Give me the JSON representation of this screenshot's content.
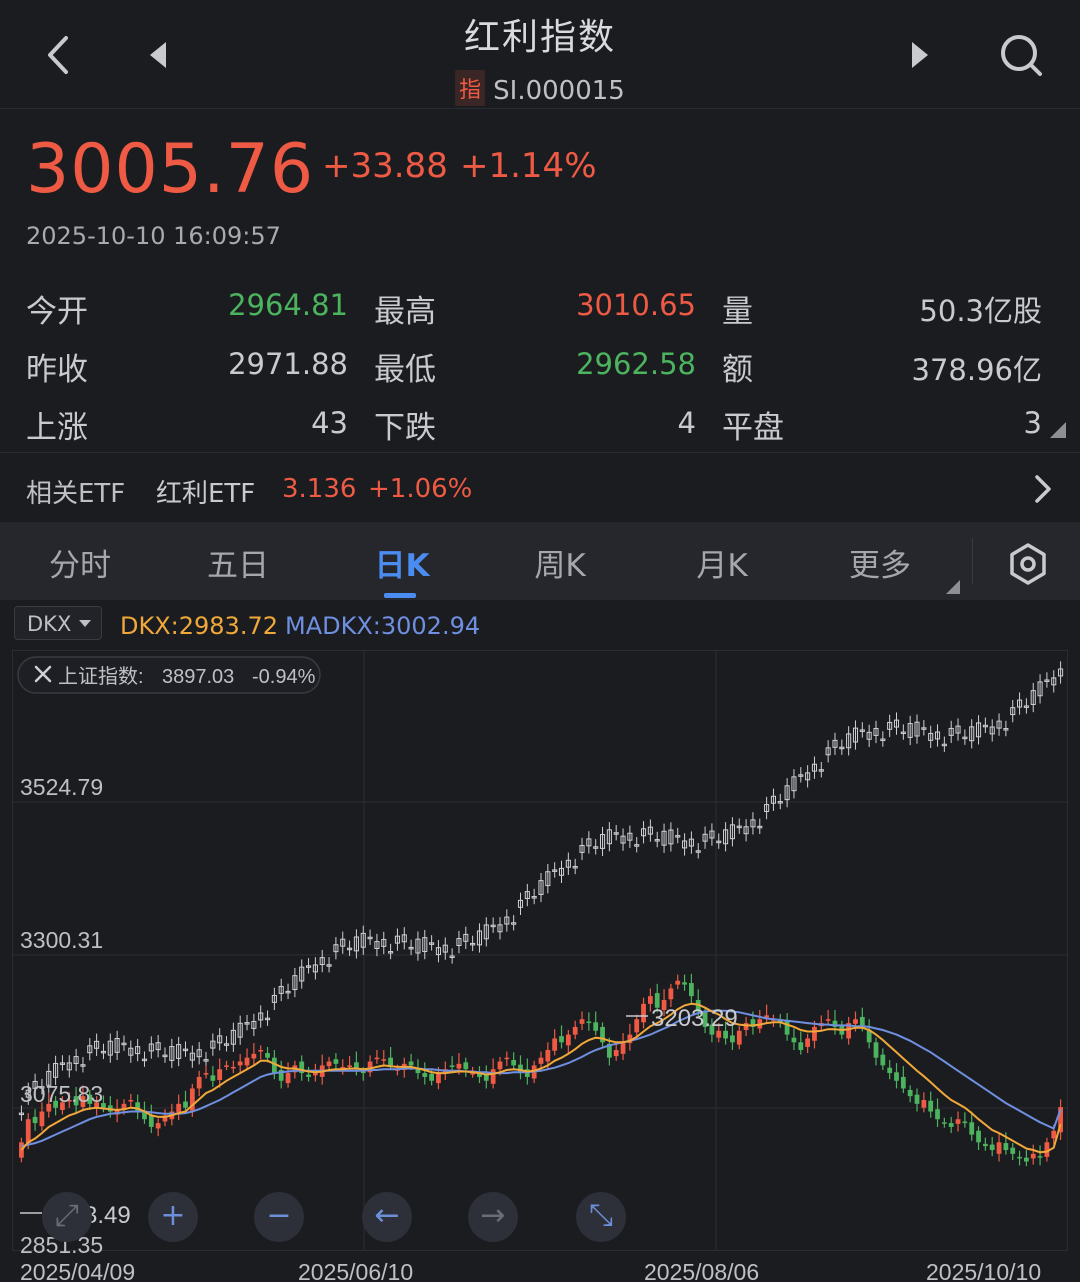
{
  "header": {
    "title": "红利指数",
    "badge": "指",
    "code": "SI.000015"
  },
  "quote": {
    "price": "3005.76",
    "change": "+33.88",
    "change_pct": "+1.14%",
    "datetime": "2025-10-10 16:09:57"
  },
  "stats": [
    {
      "label": "今开",
      "value": "2964.81",
      "color": "down"
    },
    {
      "label": "最高",
      "value": "3010.65",
      "color": "up"
    },
    {
      "label": "量",
      "value": "50.3亿股",
      "color": "neutral"
    },
    {
      "label": "昨收",
      "value": "2971.88",
      "color": "neutral"
    },
    {
      "label": "最低",
      "value": "2962.58",
      "color": "down"
    },
    {
      "label": "额",
      "value": "378.96亿",
      "color": "neutral"
    },
    {
      "label": "上涨",
      "value": "43",
      "color": "neutral"
    },
    {
      "label": "下跌",
      "value": "4",
      "color": "neutral"
    },
    {
      "label": "平盘",
      "value": "3",
      "color": "neutral"
    }
  ],
  "etf": {
    "label": "相关ETF",
    "name": "红利ETF",
    "price": "3.136",
    "change_pct": "+1.06%"
  },
  "tabs": [
    "分时",
    "五日",
    "日K",
    "周K",
    "月K",
    "更多"
  ],
  "active_tab": "日K",
  "indicator": {
    "selector": "DKX",
    "dkx_label": "DKX:",
    "dkx_value": "2983.72",
    "madkx_label": "MADKX:",
    "madkx_value": "3002.94"
  },
  "compare": {
    "label": "上证指数:",
    "value": "3897.03",
    "change": "-0.94%"
  },
  "colors": {
    "up": "#ef5a44",
    "down": "#4cb35e",
    "accent": "#4a8cf0",
    "dkx": "#f0a83a",
    "madkx": "#6f8fe0",
    "compare_candle": "#cfd0d3"
  },
  "chart_data": {
    "type": "candlestick",
    "y_labels": [
      "3524.79",
      "3300.31",
      "3075.83",
      "2851.35"
    ],
    "x_labels": [
      "2025/04/09",
      "2025/06/10",
      "2025/08/06",
      "2025/10/10"
    ],
    "annotation_high": "3203.29",
    "annotation_low": "2933.49",
    "close": [
      2960,
      2990,
      2985,
      3000,
      3010,
      3005,
      3012,
      3015,
      3008,
      3020,
      3010,
      3012,
      3005,
      3000,
      3002,
      3010,
      3015,
      3000,
      2990,
      2980,
      2985,
      2995,
      3000,
      3010,
      3005,
      3030,
      3045,
      3050,
      3040,
      3055,
      3060,
      3058,
      3065,
      3070,
      3075,
      3080,
      3070,
      3050,
      3040,
      3050,
      3060,
      3050,
      3045,
      3050,
      3060,
      3065,
      3062,
      3058,
      3060,
      3055,
      3050,
      3065,
      3070,
      3068,
      3060,
      3055,
      3062,
      3060,
      3050,
      3045,
      3040,
      3050,
      3055,
      3058,
      3062,
      3055,
      3050,
      3045,
      3040,
      3055,
      3065,
      3070,
      3060,
      3050,
      3045,
      3060,
      3070,
      3080,
      3095,
      3090,
      3100,
      3110,
      3120,
      3115,
      3105,
      3090,
      3070,
      3080,
      3090,
      3100,
      3120,
      3140,
      3150,
      3135,
      3145,
      3160,
      3170,
      3165,
      3150,
      3130,
      3110,
      3100,
      3105,
      3095,
      3090,
      3105,
      3115,
      3110,
      3120,
      3125,
      3120,
      3115,
      3100,
      3090,
      3080,
      3095,
      3110,
      3115,
      3120,
      3110,
      3100,
      3115,
      3120,
      3110,
      3090,
      3070,
      3060,
      3050,
      3040,
      3030,
      3020,
      3010,
      3015,
      3000,
      2990,
      2985,
      2980,
      2990,
      2985,
      2970,
      2960,
      2955,
      2950,
      2960,
      2950,
      2945,
      2940,
      2935,
      2945,
      2940,
      2960,
      2975,
      3005.76
    ],
    "dkx": [
      2950,
      2960,
      2965,
      2972,
      2980,
      2985,
      2990,
      2995,
      2998,
      3002,
      3004,
      3005,
      3004,
      3003,
      3002,
      3003,
      3005,
      3004,
      3000,
      2995,
      2993,
      2993,
      2995,
      2998,
      3000,
      3008,
      3016,
      3024,
      3028,
      3034,
      3040,
      3045,
      3050,
      3055,
      3060,
      3066,
      3066,
      3062,
      3058,
      3056,
      3056,
      3054,
      3052,
      3051,
      3052,
      3054,
      3055,
      3055,
      3056,
      3056,
      3055,
      3056,
      3058,
      3060,
      3059,
      3058,
      3058,
      3058,
      3056,
      3054,
      3051,
      3050,
      3050,
      3051,
      3052,
      3052,
      3051,
      3050,
      3048,
      3049,
      3051,
      3054,
      3055,
      3054,
      3052,
      3053,
      3056,
      3060,
      3066,
      3070,
      3075,
      3081,
      3088,
      3093,
      3096,
      3095,
      3092,
      3090,
      3090,
      3092,
      3097,
      3104,
      3111,
      3115,
      3120,
      3126,
      3133,
      3138,
      3140,
      3139,
      3135,
      3130,
      3126,
      3120,
      3115,
      3113,
      3112,
      3112,
      3113,
      3115,
      3116,
      3116,
      3113,
      3110,
      3106,
      3104,
      3104,
      3105,
      3107,
      3107,
      3106,
      3107,
      3109,
      3109,
      3106,
      3100,
      3093,
      3085,
      3077,
      3069,
      3061,
      3053,
      3046,
      3038,
      3030,
      3022,
      3015,
      3010,
      3005,
      2998,
      2990,
      2983,
      2976,
      2972,
      2967,
      2962,
      2957,
      2952,
      2950,
      2947,
      2948,
      2953,
      2983.72
    ],
    "madkx": [
      2955,
      2957,
      2959,
      2962,
      2966,
      2970,
      2974,
      2978,
      2982,
      2986,
      2990,
      2993,
      2995,
      2997,
      2998,
      2999,
      3000,
      3000,
      3000,
      2999,
      2998,
      2997,
      2997,
      2997,
      2998,
      3000,
      3003,
      3007,
      3011,
      3015,
      3020,
      3025,
      3030,
      3035,
      3040,
      3045,
      3048,
      3050,
      3051,
      3052,
      3053,
      3053,
      3053,
      3053,
      3053,
      3053,
      3053,
      3053,
      3053,
      3053,
      3053,
      3054,
      3054,
      3055,
      3055,
      3055,
      3056,
      3056,
      3056,
      3055,
      3055,
      3054,
      3053,
      3053,
      3053,
      3052,
      3052,
      3051,
      3051,
      3050,
      3050,
      3050,
      3051,
      3051,
      3051,
      3052,
      3053,
      3055,
      3057,
      3060,
      3063,
      3067,
      3071,
      3076,
      3080,
      3083,
      3086,
      3088,
      3090,
      3092,
      3094,
      3097,
      3100,
      3104,
      3108,
      3112,
      3117,
      3121,
      3125,
      3128,
      3130,
      3131,
      3131,
      3131,
      3130,
      3129,
      3127,
      3125,
      3123,
      3121,
      3120,
      3119,
      3118,
      3117,
      3116,
      3115,
      3114,
      3113,
      3113,
      3112,
      3112,
      3112,
      3111,
      3111,
      3110,
      3108,
      3106,
      3103,
      3100,
      3096,
      3092,
      3087,
      3082,
      3077,
      3071,
      3065,
      3059,
      3053,
      3047,
      3041,
      3035,
      3029,
      3023,
      3017,
      3011,
      3006,
      3001,
      2996,
      2991,
      2986,
      2982,
      2978,
      3002.94
    ]
  }
}
